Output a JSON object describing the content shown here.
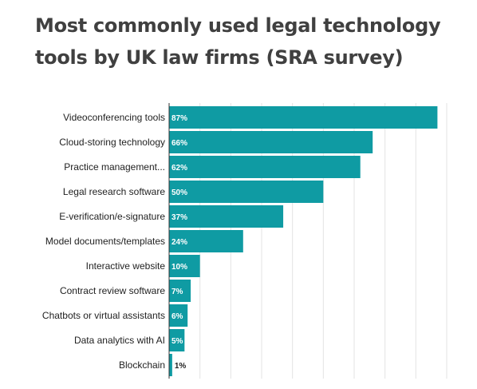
{
  "chart_data": {
    "type": "bar",
    "orientation": "horizontal",
    "title": "Most commonly used legal technology tools by UK law firms (SRA survey)",
    "categories": [
      "Videoconferencing tools",
      "Cloud-storing technology",
      "Practice management...",
      "Legal research software",
      "E-verification/e-signature",
      "Model documents/templates",
      "Interactive website",
      "Contract review software",
      "Chatbots or virtual assistants",
      "Data analytics with AI",
      "Blockchain"
    ],
    "values": [
      87,
      66,
      62,
      50,
      37,
      24,
      10,
      7,
      6,
      5,
      1
    ],
    "value_labels": [
      "87%",
      "66%",
      "62%",
      "50%",
      "37%",
      "24%",
      "10%",
      "7%",
      "6%",
      "5%",
      "1%"
    ],
    "xlim": [
      0,
      90
    ],
    "grid": true,
    "bar_color": "#0f9ba3",
    "label_inside_color": "#ffffff",
    "label_outside_color": "#222222"
  }
}
